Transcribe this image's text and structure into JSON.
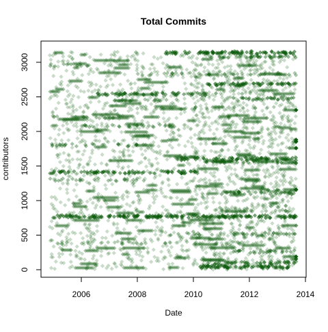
{
  "chart_data": {
    "type": "scatter",
    "title": "Total Commits",
    "xlabel": "Date",
    "ylabel": "contributors",
    "xlim": [
      "2004-11-01",
      "2013-12-01"
    ],
    "ylim": [
      0,
      3200
    ],
    "x_ticks": [
      "2006",
      "2008",
      "2010",
      "2012",
      "2014"
    ],
    "y_ticks": [
      "0",
      "500",
      "1000",
      "1500",
      "2000",
      "2500",
      "3000"
    ],
    "grid": false,
    "legend": "none",
    "marker": "diamond",
    "color": "#0b5a0b",
    "alpha": 0.22,
    "points_note": "dense scatter; approximate bands of commits per contributor over time",
    "bands": [
      {
        "y": 770,
        "x0": "2004-11-15",
        "x1": "2013-09-01",
        "density": 1.0
      },
      {
        "y": 1410,
        "x0": "2004-11-15",
        "x1": "2010-03-01",
        "density": 0.85
      },
      {
        "y": 1600,
        "x0": "2009-06-01",
        "x1": "2013-09-01",
        "density": 0.9
      },
      {
        "y": 1560,
        "x0": "2010-06-01",
        "x1": "2013-09-01",
        "density": 0.6
      },
      {
        "y": 2540,
        "x0": "2006-06-01",
        "x1": "2011-01-01",
        "density": 0.75
      },
      {
        "y": 2680,
        "x0": "2010-06-01",
        "x1": "2013-09-01",
        "density": 0.9
      },
      {
        "y": 2470,
        "x0": "2011-06-01",
        "x1": "2013-09-01",
        "density": 0.7
      },
      {
        "y": 3140,
        "x0": "2009-01-01",
        "x1": "2013-09-01",
        "density": 1.0
      },
      {
        "y": 3080,
        "x0": "2010-06-01",
        "x1": "2013-09-01",
        "density": 0.6
      },
      {
        "y": 40,
        "x0": "2010-03-01",
        "x1": "2013-09-01",
        "density": 1.0
      },
      {
        "y": 100,
        "x0": "2010-06-01",
        "x1": "2013-09-01",
        "density": 0.7
      },
      {
        "y": 260,
        "x0": "2011-06-01",
        "x1": "2013-09-01",
        "density": 0.6
      },
      {
        "y": 1110,
        "x0": "2011-01-01",
        "x1": "2013-09-01",
        "density": 0.6
      },
      {
        "y": 1150,
        "x0": "2012-06-01",
        "x1": "2013-09-01",
        "density": 0.5
      },
      {
        "y": 1800,
        "x0": "2004-11-15",
        "x1": "2008-06-01",
        "density": 0.45
      },
      {
        "y": 1300,
        "x0": "2004-11-15",
        "x1": "2008-06-01",
        "density": 0.4
      },
      {
        "y": 2080,
        "x0": "2006-01-01",
        "x1": "2009-06-01",
        "density": 0.45
      },
      {
        "y": 2210,
        "x0": "2004-11-15",
        "x1": "2007-06-01",
        "density": 0.35
      },
      {
        "y": 2960,
        "x0": "2004-11-15",
        "x1": "2006-06-01",
        "density": 0.45
      },
      {
        "y": 2450,
        "x0": "2007-01-01",
        "x1": "2010-01-01",
        "density": 0.35
      },
      {
        "y": 520,
        "x0": "2009-01-01",
        "x1": "2013-09-01",
        "density": 0.45
      },
      {
        "y": 2830,
        "x0": "2008-01-01",
        "x1": "2013-09-01",
        "density": 0.35
      },
      {
        "y": 860,
        "x0": "2011-01-01",
        "x1": "2013-09-01",
        "density": 0.35
      },
      {
        "y": 390,
        "x0": "2004-11-15",
        "x1": "2013-09-01",
        "density": 0.25
      },
      {
        "y": 2340,
        "x0": "2008-01-01",
        "x1": "2013-09-01",
        "density": 0.25
      }
    ]
  }
}
